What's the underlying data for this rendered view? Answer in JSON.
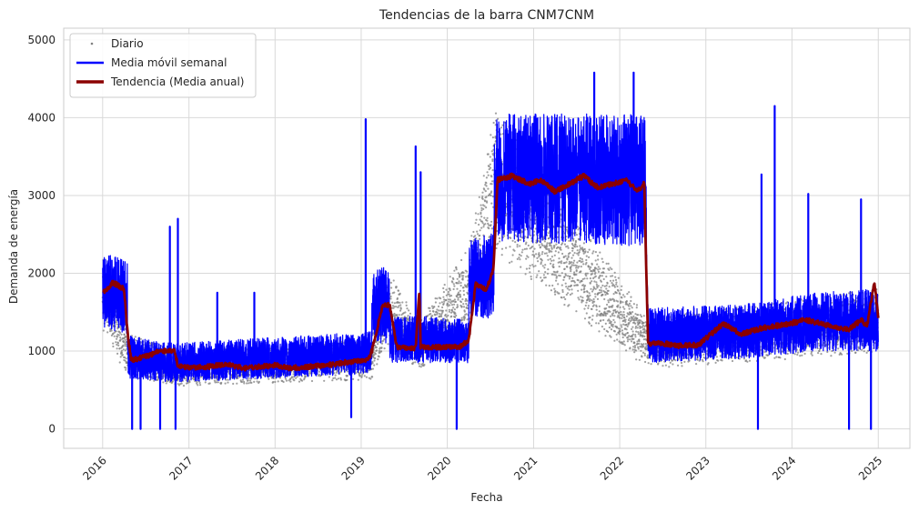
{
  "chart_data": {
    "type": "line",
    "title": "Tendencias de la barra CNM7CNM",
    "xlabel": "Fecha",
    "ylabel": "Demanda de energía",
    "xlim": [
      "2015-07-20",
      "2025-05-15"
    ],
    "ylim": [
      -250,
      5150
    ],
    "x_ticks": [
      "2016",
      "2017",
      "2018",
      "2019",
      "2020",
      "2021",
      "2022",
      "2023",
      "2024",
      "2025"
    ],
    "y_ticks": [
      0,
      1000,
      2000,
      3000,
      4000,
      5000
    ],
    "grid": true,
    "legend": {
      "position": "top-left",
      "entries": [
        "Diario",
        "Media móvil semanal",
        "Tendencia (Media anual)"
      ]
    },
    "colors": {
      "daily": "#808080",
      "weekly": "#0000ff",
      "trend": "#8b0000",
      "grid": "#d9d9d9"
    },
    "series": [
      {
        "name": "Diario",
        "style": "scatter",
        "level_x": [
          "2016-01-01",
          "2016-04-15",
          "2016-11-01",
          "2019-02-15",
          "2019-05-01",
          "2019-09-01",
          "2020-04-01",
          "2020-07-20",
          "2022-05-01",
          "2024-04-01",
          "2025-01-01"
        ],
        "level_y": [
          1800,
          950,
          780,
          900,
          1550,
          1050,
          1800,
          3200,
          1100,
          1300,
          1400
        ],
        "spread": 550
      },
      {
        "name": "Media móvil semanal",
        "style": "band",
        "x": [
          "2016-01-01",
          "2016-04-15",
          "2016-04-16",
          "2016-11-01",
          "2019-02-15",
          "2019-02-16",
          "2019-05-01",
          "2019-05-02",
          "2019-09-01",
          "2019-09-02",
          "2020-04-01",
          "2020-04-02",
          "2020-07-15",
          "2020-07-20",
          "2022-04-20",
          "2022-05-01",
          "2023-06-01",
          "2024-04-01",
          "2025-01-01"
        ],
        "lower": [
          1300,
          1200,
          650,
          600,
          700,
          1100,
          1100,
          850,
          850,
          850,
          850,
          1450,
          1400,
          2400,
          2350,
          850,
          900,
          1000,
          1000
        ],
        "upper": [
          2250,
          2200,
          1200,
          1100,
          1250,
          2050,
          2100,
          1450,
          1450,
          1450,
          1400,
          2450,
          2550,
          4050,
          4050,
          1550,
          1600,
          1750,
          1800
        ],
        "spikes": [
          {
            "x": "2016-05-05",
            "y": 0
          },
          {
            "x": "2016-06-10",
            "y": 0
          },
          {
            "x": "2016-09-01",
            "y": 0
          },
          {
            "x": "2016-10-12",
            "y": 2600
          },
          {
            "x": "2016-11-05",
            "y": 0
          },
          {
            "x": "2016-11-15",
            "y": 2700
          },
          {
            "x": "2017-05-01",
            "y": 1750
          },
          {
            "x": "2017-10-05",
            "y": 1750
          },
          {
            "x": "2018-11-20",
            "y": 150
          },
          {
            "x": "2019-01-20",
            "y": 3980
          },
          {
            "x": "2019-08-20",
            "y": 3630
          },
          {
            "x": "2019-09-10",
            "y": 3300
          },
          {
            "x": "2020-02-10",
            "y": 0
          },
          {
            "x": "2021-09-15",
            "y": 4580
          },
          {
            "x": "2022-03-01",
            "y": 4580
          },
          {
            "x": "2023-08-10",
            "y": 0
          },
          {
            "x": "2023-08-25",
            "y": 3270
          },
          {
            "x": "2023-10-20",
            "y": 4150
          },
          {
            "x": "2024-03-10",
            "y": 3020
          },
          {
            "x": "2024-08-30",
            "y": 0
          },
          {
            "x": "2024-10-20",
            "y": 2950
          },
          {
            "x": "2024-12-01",
            "y": 0
          }
        ]
      },
      {
        "name": "Tendencia (Media anual)",
        "style": "line",
        "x": [
          "2016-01-01",
          "2016-02-15",
          "2016-04-01",
          "2016-04-15",
          "2016-05-01",
          "2016-07-01",
          "2016-09-01",
          "2016-11-01",
          "2016-11-15",
          "2017-03-01",
          "2017-06-01",
          "2017-09-01",
          "2018-01-01",
          "2018-03-01",
          "2018-06-01",
          "2018-09-01",
          "2018-12-01",
          "2019-02-01",
          "2019-02-15",
          "2019-04-01",
          "2019-05-01",
          "2019-06-01",
          "2019-08-20",
          "2019-09-05",
          "2019-09-10",
          "2019-12-01",
          "2020-03-01",
          "2020-04-01",
          "2020-05-01",
          "2020-06-15",
          "2020-07-15",
          "2020-08-01",
          "2020-10-01",
          "2020-12-15",
          "2021-02-01",
          "2021-04-01",
          "2021-06-01",
          "2021-08-01",
          "2021-10-01",
          "2021-12-01",
          "2022-02-01",
          "2022-03-15",
          "2022-04-15",
          "2022-05-01",
          "2022-07-01",
          "2022-09-01",
          "2022-12-01",
          "2023-03-15",
          "2023-06-01",
          "2023-09-01",
          "2023-12-01",
          "2024-03-01",
          "2024-06-01",
          "2024-09-01",
          "2024-10-20",
          "2024-11-15",
          "2024-12-15",
          "2025-01-01"
        ],
        "y": [
          1750,
          1880,
          1800,
          1250,
          880,
          930,
          1000,
          1010,
          800,
          790,
          830,
          780,
          820,
          780,
          800,
          830,
          870,
          890,
          1000,
          1580,
          1600,
          1050,
          1040,
          1800,
          1050,
          1050,
          1060,
          1150,
          1870,
          1780,
          2050,
          3200,
          3250,
          3150,
          3200,
          3050,
          3150,
          3250,
          3100,
          3150,
          3200,
          3050,
          3150,
          1100,
          1100,
          1070,
          1080,
          1350,
          1220,
          1300,
          1340,
          1400,
          1330,
          1280,
          1400,
          1330,
          1900,
          1420
        ]
      }
    ]
  }
}
